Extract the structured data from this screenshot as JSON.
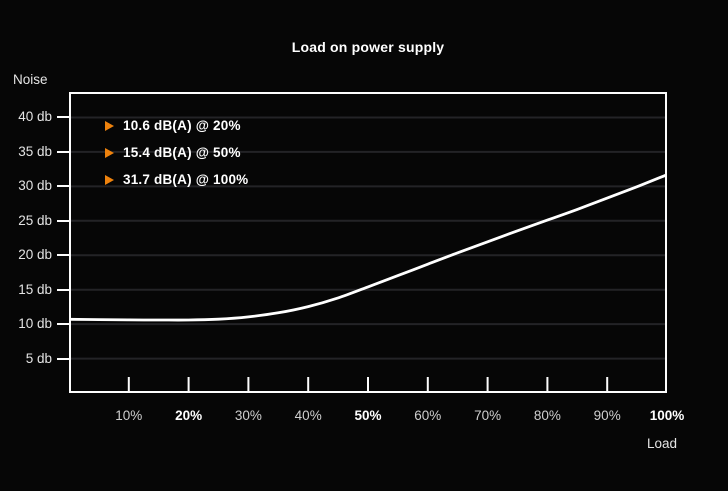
{
  "chart_data": {
    "type": "line",
    "title": "Load on power supply",
    "xlabel": "Load",
    "ylabel": "Noise",
    "xlim": [
      0,
      100
    ],
    "ylim": [
      0,
      43.7
    ],
    "grid": "horizontal-only",
    "legend_position": "top-left-inside",
    "colors": {
      "background": "#060606",
      "axis": "#fdfdfd",
      "gridline": "#232326",
      "curve": "#ffffff",
      "accent_orange": "#ee820d",
      "label": "#cfcfcf",
      "label_emphasis": "#ffffff"
    },
    "legend": [
      {
        "marker": "triangle-right-icon",
        "label": "10.6 dB(A) @ 20%"
      },
      {
        "marker": "triangle-right-icon",
        "label": "15.4 dB(A) @ 50%"
      },
      {
        "marker": "triangle-right-icon",
        "label": "31.7 dB(A) @ 100%"
      }
    ],
    "y_ticks": [
      {
        "label": "40 db",
        "value": 40
      },
      {
        "label": "35 db",
        "value": 35
      },
      {
        "label": "30 db",
        "value": 30
      },
      {
        "label": "25 db",
        "value": 25
      },
      {
        "label": "20 db",
        "value": 20
      },
      {
        "label": "15 db",
        "value": 15
      },
      {
        "label": "10 db",
        "value": 10
      },
      {
        "label": "5 db",
        "value": 5
      }
    ],
    "x_ticks": [
      {
        "label": "10%",
        "value": 10,
        "bold": false,
        "tick": true
      },
      {
        "label": "20%",
        "value": 20,
        "bold": true,
        "tick": true
      },
      {
        "label": "30%",
        "value": 30,
        "bold": false,
        "tick": true
      },
      {
        "label": "40%",
        "value": 40,
        "bold": false,
        "tick": true
      },
      {
        "label": "50%",
        "value": 50,
        "bold": true,
        "tick": true
      },
      {
        "label": "60%",
        "value": 60,
        "bold": false,
        "tick": true
      },
      {
        "label": "70%",
        "value": 70,
        "bold": false,
        "tick": true
      },
      {
        "label": "80%",
        "value": 80,
        "bold": false,
        "tick": true
      },
      {
        "label": "90%",
        "value": 90,
        "bold": false,
        "tick": true
      },
      {
        "label": "100%",
        "value": 100,
        "bold": true,
        "tick": false
      }
    ],
    "series": [
      {
        "name": "Noise dB(A)",
        "x": [
          0,
          5,
          10,
          15,
          20,
          25,
          30,
          35,
          40,
          45,
          50,
          55,
          60,
          65,
          70,
          75,
          80,
          85,
          90,
          95,
          100
        ],
        "y": [
          10.7,
          10.66,
          10.62,
          10.6,
          10.6,
          10.72,
          11.05,
          11.65,
          12.55,
          13.8,
          15.4,
          17.05,
          18.7,
          20.35,
          21.95,
          23.55,
          25.1,
          26.65,
          28.3,
          29.95,
          31.7
        ]
      }
    ]
  }
}
